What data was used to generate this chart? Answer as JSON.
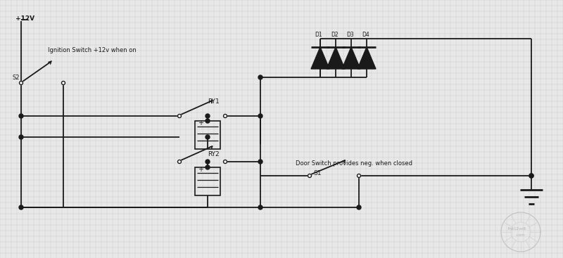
{
  "bg_color": "#e8e8e8",
  "grid_color": "#c8c8c8",
  "line_color": "#1a1a1a",
  "figsize": [
    8.0,
    3.67
  ],
  "dpi": 100,
  "plus12v_label": "+12V",
  "ign_label": "Ignition Switch +12v when on",
  "s2_label": "S2",
  "ry1_label": "RY1",
  "ry2_label": "RY2",
  "d_labels": [
    "D1",
    "D2",
    "D3",
    "D4"
  ],
  "s1_label": "S1",
  "door_label": "Door Switch provides neg. when closed",
  "watermark": "the12volt.com"
}
